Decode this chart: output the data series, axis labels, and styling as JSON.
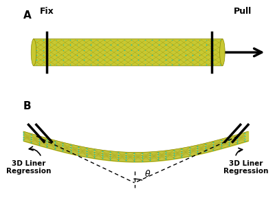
{
  "bg_color": "#ffffff",
  "panel_A_label": "A",
  "panel_B_label": "B",
  "fix_label": "Fix",
  "pull_label": "Pull",
  "regression_label": "3D Liner\nRegression",
  "theta_label": "θ",
  "microtubule_yellow": "#c8c800",
  "microtubule_yellow2": "#d4d400",
  "microtubule_cyan": "#00bcd4",
  "tube_color_light": "#c8d400",
  "tube_color_dark": "#a0b000",
  "node_color": "#00cccc",
  "figsize": [
    4.0,
    2.88
  ],
  "dpi": 100
}
